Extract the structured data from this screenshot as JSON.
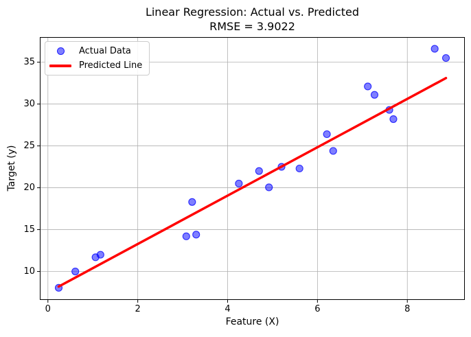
{
  "title": {
    "line1": "Linear Regression: Actual vs. Predicted",
    "line2": "RMSE = 3.9022"
  },
  "chart_data": {
    "type": "scatter",
    "title": "Linear Regression: Actual vs. Predicted",
    "subtitle": "RMSE = 3.9022",
    "rmse": 3.9022,
    "xlabel": "Feature (X)",
    "ylabel": "Target (y)",
    "xlim": [
      -0.18,
      9.28
    ],
    "ylim": [
      6.6,
      38.0
    ],
    "xticks": [
      0,
      2,
      4,
      6,
      8
    ],
    "yticks": [
      10,
      15,
      20,
      25,
      30,
      35
    ],
    "grid": true,
    "grid_color": "#b0b0b0",
    "spine_color": "#000000",
    "legend_position": "upper-left",
    "series": [
      {
        "name": "Actual Data",
        "type": "scatter",
        "color": "#0000ff",
        "alpha": 0.5,
        "fill": "rgba(0,0,255,0.5)",
        "edge": "rgba(0,0,255,0.78)",
        "marker_radius": 5,
        "points": [
          [
            0.24,
            8.05
          ],
          [
            0.61,
            10.0
          ],
          [
            1.06,
            11.7
          ],
          [
            1.17,
            12.0
          ],
          [
            3.08,
            14.2
          ],
          [
            3.21,
            18.3
          ],
          [
            3.3,
            14.4
          ],
          [
            4.25,
            20.5
          ],
          [
            4.7,
            22.0
          ],
          [
            4.92,
            20.05
          ],
          [
            5.2,
            22.5
          ],
          [
            5.6,
            22.3
          ],
          [
            6.21,
            26.4
          ],
          [
            6.35,
            24.4
          ],
          [
            7.12,
            32.1
          ],
          [
            7.27,
            31.1
          ],
          [
            7.6,
            29.3
          ],
          [
            7.69,
            28.2
          ],
          [
            8.61,
            36.6
          ],
          [
            8.86,
            35.5
          ]
        ]
      },
      {
        "name": "Predicted Line",
        "type": "line",
        "color": "#ff0000",
        "line_width": 3.5,
        "slope": 2.89,
        "intercept": 7.5,
        "points": [
          [
            0.24,
            8.2
          ],
          [
            8.86,
            33.1
          ]
        ]
      }
    ]
  }
}
